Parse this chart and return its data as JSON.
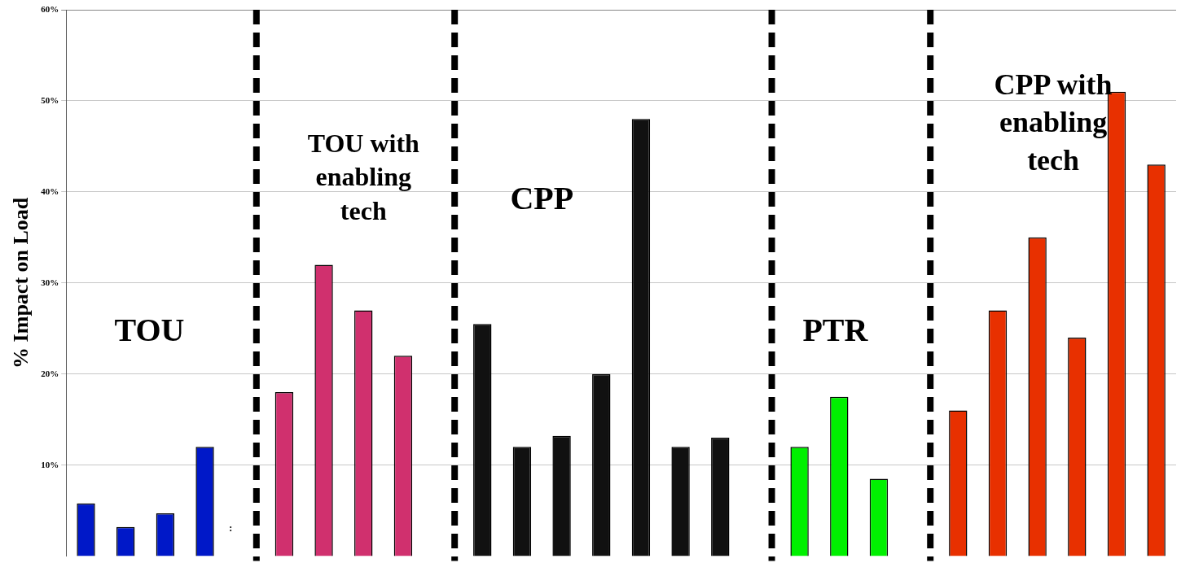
{
  "chart_data": {
    "type": "bar",
    "ylabel": "% Impact on Load",
    "categories": [
      null,
      null,
      null,
      null,
      null,
      null,
      null,
      null,
      null,
      null,
      null,
      null,
      null,
      null,
      null,
      null,
      null,
      null,
      null,
      null,
      null,
      null,
      null,
      null,
      null,
      null,
      null,
      null
    ],
    "values": [
      5.8,
      3.2,
      4.7,
      12,
      null,
      18,
      32,
      27,
      22,
      null,
      25.5,
      12,
      13.2,
      20,
      48,
      12,
      13,
      null,
      12,
      17.5,
      8.5,
      null,
      16,
      27,
      35,
      24,
      51,
      43
    ],
    "colors": [
      "#0018c8",
      "#0018c8",
      "#0018c8",
      "#0018c8",
      "#000000",
      "#d0306e",
      "#d0306e",
      "#d0306e",
      "#d0306e",
      "#000000",
      "#111111",
      "#111111",
      "#111111",
      "#111111",
      "#111111",
      "#111111",
      "#111111",
      "#000000",
      "#00f000",
      "#00f000",
      "#00f000",
      "#000000",
      "#e83000",
      "#e83000",
      "#e83000",
      "#e83000",
      "#e83000",
      "#e83000"
    ],
    "ylim": [
      0,
      60
    ],
    "yticks": [
      {
        "value": 10,
        "label": "10%"
      },
      {
        "value": 20,
        "label": "20%"
      },
      {
        "value": 30,
        "label": "30%"
      },
      {
        "value": 40,
        "label": "40%"
      },
      {
        "value": 50,
        "label": "50%"
      },
      {
        "value": 60,
        "label": "60%"
      }
    ],
    "grid": "y",
    "annotations": [
      "TOU",
      "TOU with enabling tech",
      "CPP",
      "PTR",
      "CPP with enabling tech",
      ":"
    ]
  }
}
